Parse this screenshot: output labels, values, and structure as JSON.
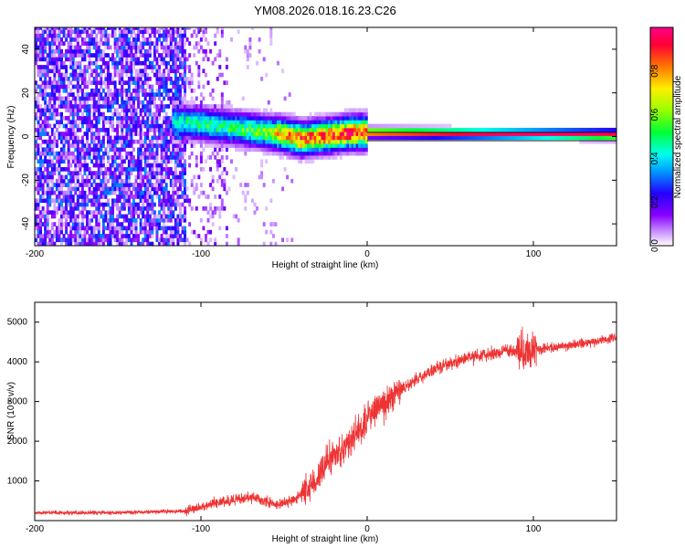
{
  "title": "YM08.2026.018.16.23.C26",
  "chart_data": [
    {
      "type": "heatmap",
      "xlabel": "Height of straight line (km)",
      "ylabel": "Frequency (Hz)",
      "xlim": [
        -200,
        150
      ],
      "ylim": [
        -50,
        50
      ],
      "xticks": [
        -200,
        -100,
        0,
        100
      ],
      "yticks": [
        -40,
        -20,
        0,
        20,
        40
      ],
      "colorbar": {
        "label": "Normalized spectral amplitude",
        "range": [
          0,
          1
        ],
        "ticks": [
          "0.0",
          "0.2",
          "0.4",
          "0.6",
          "0.8"
        ]
      },
      "ridge": [
        {
          "x": -115,
          "y": 6,
          "v": 0.45
        },
        {
          "x": -100,
          "y": 5,
          "v": 0.5
        },
        {
          "x": -90,
          "y": 4,
          "v": 0.5
        },
        {
          "x": -80,
          "y": 3,
          "v": 0.5
        },
        {
          "x": -70,
          "y": 2,
          "v": 0.55
        },
        {
          "x": -60,
          "y": 1,
          "v": 0.6
        },
        {
          "x": -50,
          "y": 0,
          "v": 0.8
        },
        {
          "x": -40,
          "y": -2,
          "v": 0.85
        },
        {
          "x": -30,
          "y": -1,
          "v": 0.85
        },
        {
          "x": -20,
          "y": 0,
          "v": 0.85
        },
        {
          "x": -10,
          "y": 1,
          "v": 0.9
        },
        {
          "x": 0,
          "y": 1,
          "v": 0.9
        },
        {
          "x": 150,
          "y": 0,
          "v": 1.0
        }
      ]
    },
    {
      "type": "line",
      "xlabel": "Height of straight line (km)",
      "ylabel": "SNR (10 * v/v)",
      "xlim": [
        -200,
        150
      ],
      "ylim": [
        0,
        5500
      ],
      "xticks": [
        -200,
        -100,
        0,
        100
      ],
      "yticks": [
        1000,
        2000,
        3000,
        4000,
        5000
      ],
      "color": "#ee3333",
      "trend": [
        {
          "x": -200,
          "y": 200
        },
        {
          "x": -150,
          "y": 200
        },
        {
          "x": -110,
          "y": 240
        },
        {
          "x": -90,
          "y": 450
        },
        {
          "x": -70,
          "y": 600
        },
        {
          "x": -55,
          "y": 400
        },
        {
          "x": -45,
          "y": 500
        },
        {
          "x": -35,
          "y": 800
        },
        {
          "x": -25,
          "y": 1400
        },
        {
          "x": -15,
          "y": 1800
        },
        {
          "x": -5,
          "y": 2200
        },
        {
          "x": 5,
          "y": 2800
        },
        {
          "x": 20,
          "y": 3300
        },
        {
          "x": 40,
          "y": 3800
        },
        {
          "x": 60,
          "y": 4100
        },
        {
          "x": 80,
          "y": 4250
        },
        {
          "x": 100,
          "y": 4300
        },
        {
          "x": 120,
          "y": 4400
        },
        {
          "x": 150,
          "y": 4600
        }
      ]
    }
  ]
}
